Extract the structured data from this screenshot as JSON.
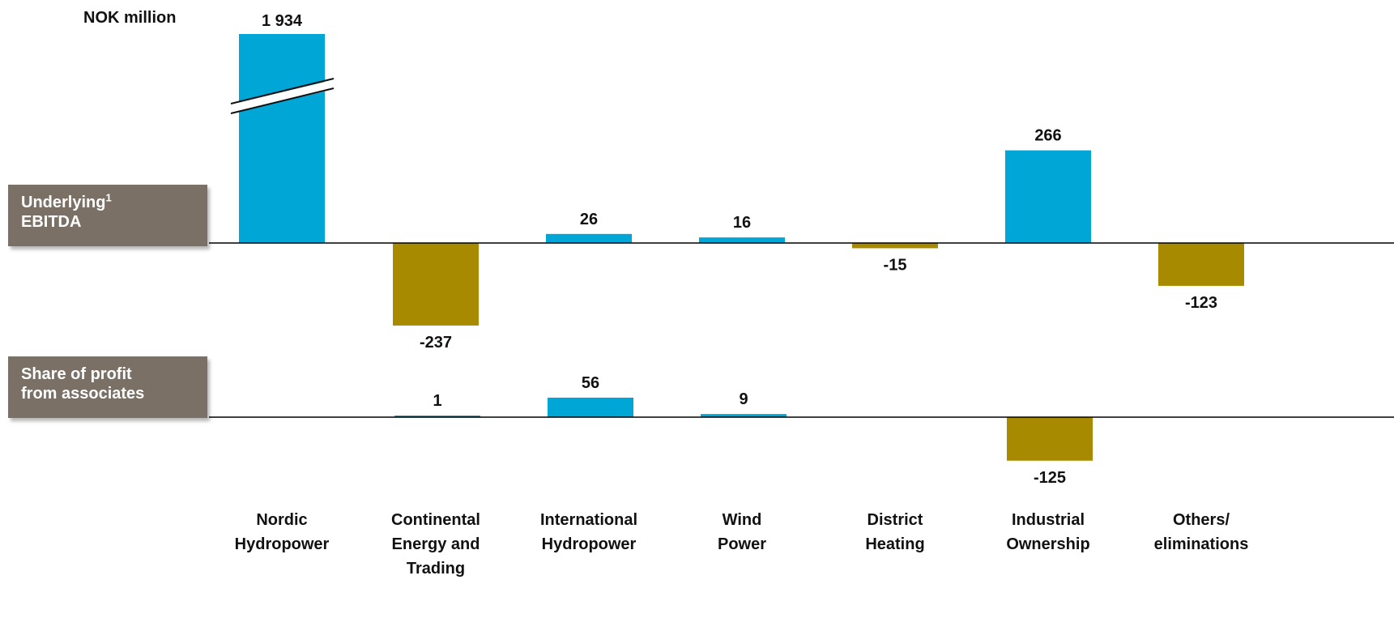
{
  "chart_data": {
    "type": "bar",
    "unit_label": "NOK million",
    "categories": [
      [
        "Nordic",
        "Hydropower"
      ],
      [
        "Continental",
        "Energy and",
        "Trading"
      ],
      [
        "International",
        "Hydropower"
      ],
      [
        "Wind",
        "Power"
      ],
      [
        "District",
        "Heating"
      ],
      [
        "Industrial",
        "Ownership"
      ],
      [
        "Others/",
        "eliminations"
      ]
    ],
    "series": [
      {
        "name": "Underlying EBITDA",
        "label_main": "Underlying",
        "label_sup": "1",
        "label_line2": "EBITDA",
        "values": [
          1934,
          -237,
          26,
          16,
          -15,
          266,
          -123
        ],
        "value_labels": [
          "1 934",
          "-237",
          "26",
          "16",
          "-15",
          "266",
          "-123"
        ],
        "axis_break": "Nordic Hydropower bar broken"
      },
      {
        "name": "Share of profit from associates",
        "label_line1": "Share of profit",
        "label_line2": "from associates",
        "values": [
          null,
          1,
          56,
          9,
          null,
          -125,
          null
        ],
        "value_labels": [
          "",
          "1",
          "56",
          "9",
          "",
          "-125",
          ""
        ]
      }
    ],
    "colors": {
      "positive": "#00A6D6",
      "negative": "#A88A00",
      "label_box": "#7A7065"
    }
  }
}
